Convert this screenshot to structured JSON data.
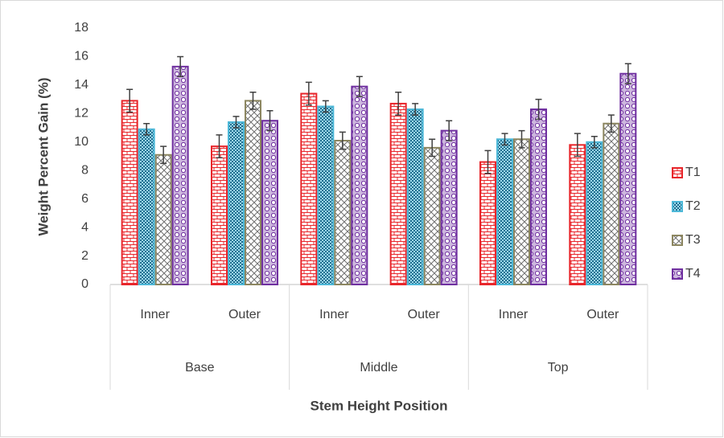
{
  "chart_data": {
    "type": "bar",
    "y_label": "Weight Percent Gain (%)",
    "x_label": "Stem Height Position",
    "categories": [
      "Inner",
      "Outer",
      "Inner",
      "Outer",
      "Inner",
      "Outer"
    ],
    "category_groups": [
      "Base",
      "Middle",
      "Top"
    ],
    "series": [
      {
        "name": "T1",
        "color": "#e8262b",
        "pattern": "brick",
        "values": [
          12.9,
          9.7,
          13.4,
          12.7,
          8.6,
          9.8
        ],
        "errors": [
          0.8,
          0.8,
          0.8,
          0.8,
          0.8,
          0.8
        ]
      },
      {
        "name": "T2",
        "color": "#4db8d8",
        "pattern": "checker",
        "values": [
          10.9,
          11.4,
          12.5,
          12.3,
          10.2,
          10.0
        ],
        "errors": [
          0.4,
          0.4,
          0.4,
          0.4,
          0.4,
          0.4
        ]
      },
      {
        "name": "T3",
        "color": "#8c8660",
        "pattern": "crosshatch",
        "values": [
          9.1,
          12.9,
          10.1,
          9.6,
          10.2,
          11.3
        ],
        "errors": [
          0.6,
          0.6,
          0.6,
          0.6,
          0.6,
          0.6
        ]
      },
      {
        "name": "T4",
        "color": "#7030a0",
        "pattern": "dots",
        "values": [
          15.3,
          11.5,
          13.9,
          10.8,
          12.3,
          14.8
        ],
        "errors": [
          0.7,
          0.7,
          0.7,
          0.7,
          0.7,
          0.7
        ]
      }
    ],
    "ylim": [
      0,
      18
    ],
    "yticks": [
      0,
      2,
      4,
      6,
      8,
      10,
      12,
      14,
      16,
      18
    ],
    "grid": false,
    "legend": "right"
  }
}
